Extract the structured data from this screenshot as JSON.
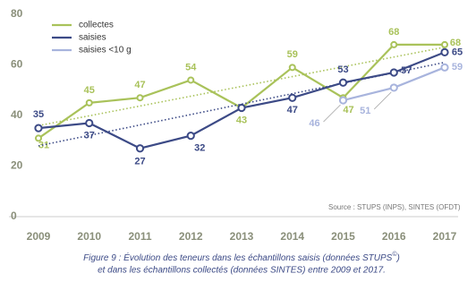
{
  "chart_data": {
    "type": "line",
    "x": [
      2009,
      2010,
      2011,
      2012,
      2013,
      2014,
      2015,
      2016,
      2017
    ],
    "xlim": [
      2009,
      2017
    ],
    "ylim": [
      0,
      80
    ],
    "yticks": [
      0,
      20,
      40,
      60,
      80
    ],
    "legend": "top-left",
    "series": [
      {
        "name": "collectes",
        "color": "#a9c25a",
        "values": [
          31,
          45,
          47,
          54,
          43,
          59,
          47,
          68,
          68
        ],
        "trend": [
          36,
          67
        ]
      },
      {
        "name": "saisies",
        "color": "#3c4a86",
        "values": [
          35,
          37,
          27,
          32,
          43,
          47,
          53,
          57,
          65
        ],
        "hidden_labels": [
          4
        ],
        "trend": [
          28,
          61
        ]
      },
      {
        "name": "saisies <10 g",
        "color": "#a8b4dd",
        "values": [
          null,
          null,
          null,
          null,
          null,
          null,
          46,
          51,
          59
        ]
      }
    ],
    "source": "Source : STUPS (INPS), SINTES (OFDT)",
    "caption": [
      "Figure 9 : Évolution des teneurs dans les échantillons saisis (données STUPS",
      "©",
      ")",
      "et dans les échantillons collectés (données SINTES) entre 2009 et 2017."
    ]
  }
}
